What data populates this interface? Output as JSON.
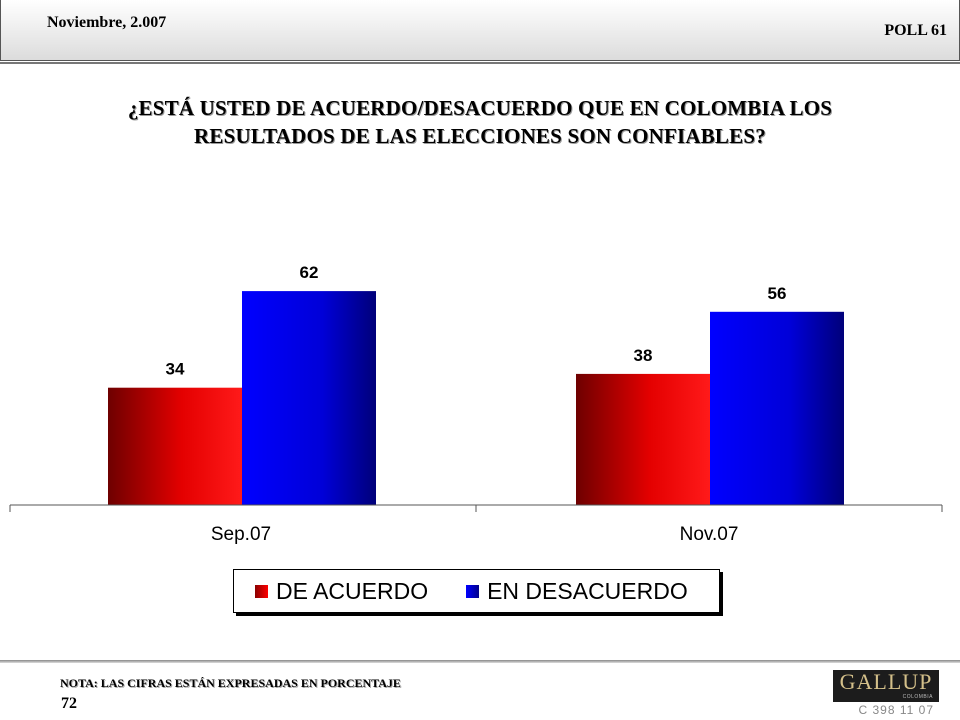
{
  "header": {
    "date": "Noviembre, 2.007",
    "poll": "POLL 61"
  },
  "title_line1": "¿ESTÁ USTED DE ACUERDO/DESACUERDO QUE EN COLOMBIA LOS",
  "title_line2": "RESULTADOS DE LAS ELECCIONES SON CONFIABLES?",
  "chart_data": {
    "type": "bar",
    "categories": [
      "Sep.07",
      "Nov.07"
    ],
    "series": [
      {
        "name": "DE ACUERDO",
        "values": [
          34,
          38
        ],
        "color": "#ff0000"
      },
      {
        "name": "EN DESACUERDO",
        "values": [
          62,
          56
        ],
        "color": "#0000ff"
      }
    ],
    "title": "¿ESTÁ USTED DE ACUERDO/DESACUERDO QUE EN COLOMBIA LOS RESULTADOS DE LAS ELECCIONES SON CONFIABLES?",
    "xlabel": "",
    "ylabel": "",
    "ylim": [
      0,
      100
    ],
    "grid": false,
    "legend": "bottom"
  },
  "legend": {
    "item1": "DE ACUERDO",
    "item2": "EN DESACUERDO"
  },
  "footer": {
    "note": "NOTA: LAS CIFRAS ESTÁN EXPRESADAS EN PORCENTAJE",
    "page": "72",
    "logo": "GALLUP",
    "logo_sub": "COLOMBIA",
    "code": "C 398 11 07"
  }
}
